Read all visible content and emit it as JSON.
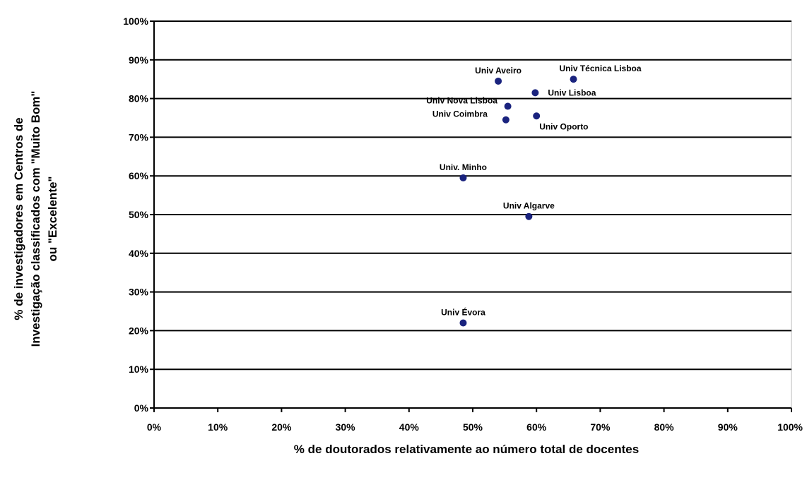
{
  "chart_data": {
    "type": "scatter",
    "xlabel": "% de doutorados relativamente ao número total de docentes",
    "ylabel_lines": [
      "% de investigadores em Centros de",
      "Investigação classificados com \"Muito Bom\"",
      "ou \"Excelente\""
    ],
    "xlim": [
      0,
      100
    ],
    "ylim": [
      0,
      100
    ],
    "x_ticks": [
      0,
      10,
      20,
      30,
      40,
      50,
      60,
      70,
      80,
      90,
      100
    ],
    "y_ticks": [
      0,
      10,
      20,
      30,
      40,
      50,
      60,
      70,
      80,
      90,
      100
    ],
    "x_tick_labels": [
      "0%",
      "10%",
      "20%",
      "30%",
      "40%",
      "50%",
      "60%",
      "70%",
      "80%",
      "90%",
      "100%"
    ],
    "y_tick_labels": [
      "0%",
      "10%",
      "20%",
      "30%",
      "40%",
      "50%",
      "60%",
      "70%",
      "80%",
      "90%",
      "100%"
    ],
    "grid": "horizontal",
    "point_color": "#1a237e",
    "points": [
      {
        "label": "Univ Aveiro",
        "x": 54,
        "y": 84.5,
        "label_pos": "above"
      },
      {
        "label": "Univ Técnica Lisboa",
        "x": 65.8,
        "y": 85,
        "label_pos": "upper-right"
      },
      {
        "label": "Univ Lisboa",
        "x": 59.8,
        "y": 81.5,
        "label_pos": "right"
      },
      {
        "label": "Univ Nova Lisboa",
        "x": 55.5,
        "y": 78,
        "label_pos": "left"
      },
      {
        "label": "Univ Coimbra",
        "x": 55.2,
        "y": 74.5,
        "label_pos": "left"
      },
      {
        "label": "Univ Oporto",
        "x": 60,
        "y": 75.5,
        "label_pos": "lower-right"
      },
      {
        "label": "Univ. Minho",
        "x": 48.5,
        "y": 59.5,
        "label_pos": "above"
      },
      {
        "label": "Univ Algarve",
        "x": 58.8,
        "y": 49.5,
        "label_pos": "above"
      },
      {
        "label": "Univ Évora",
        "x": 48.5,
        "y": 22,
        "label_pos": "above"
      }
    ]
  }
}
